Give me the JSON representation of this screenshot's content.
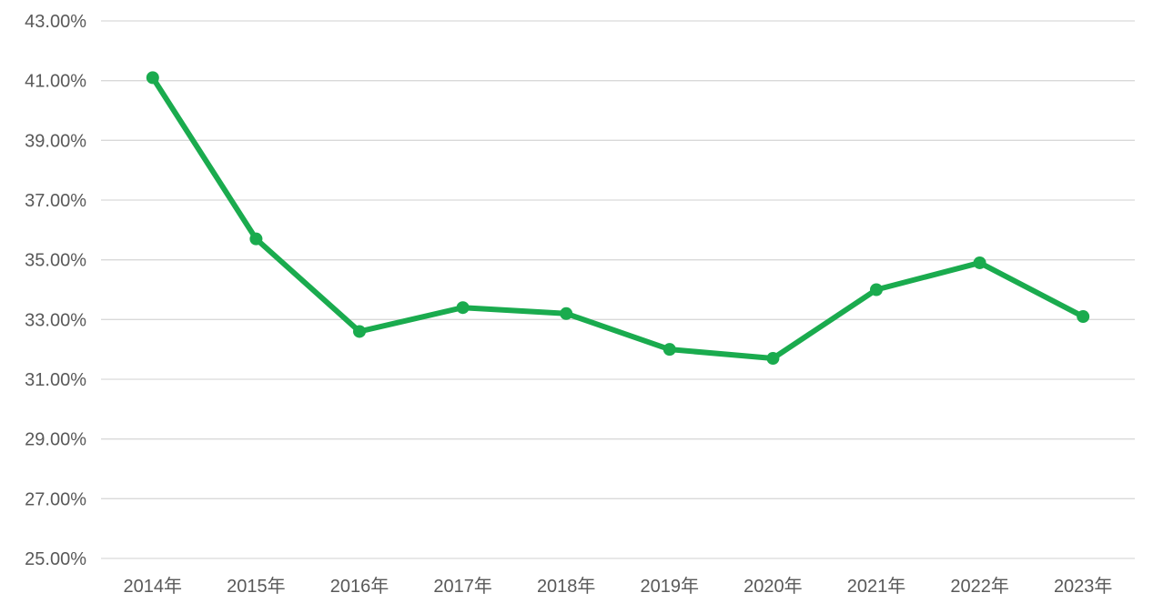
{
  "chart_data": {
    "type": "line",
    "title": "",
    "xlabel": "",
    "ylabel": "",
    "categories": [
      "2014年",
      "2015年",
      "2016年",
      "2017年",
      "2018年",
      "2019年",
      "2020年",
      "2021年",
      "2022年",
      "2023年"
    ],
    "series": [
      {
        "name": "percentage-series",
        "values": [
          41.1,
          35.7,
          32.6,
          33.4,
          33.2,
          32.0,
          31.7,
          34.0,
          34.9,
          33.1
        ]
      }
    ],
    "ylim": [
      25,
      43
    ],
    "y_tick_step": 2,
    "y_tick_labels": [
      "43.00%",
      "41.00%",
      "39.00%",
      "37.00%",
      "35.00%",
      "33.00%",
      "31.00%",
      "29.00%",
      "27.00%",
      "25.00%"
    ],
    "grid": "horizontal",
    "legend": "none",
    "marker": "circle",
    "colors": {
      "line": "#1AAB4E",
      "marker": "#1AAB4E",
      "gridline": "#D9D9D9",
      "tick_label": "#595959",
      "background": "#FFFFFF"
    }
  }
}
